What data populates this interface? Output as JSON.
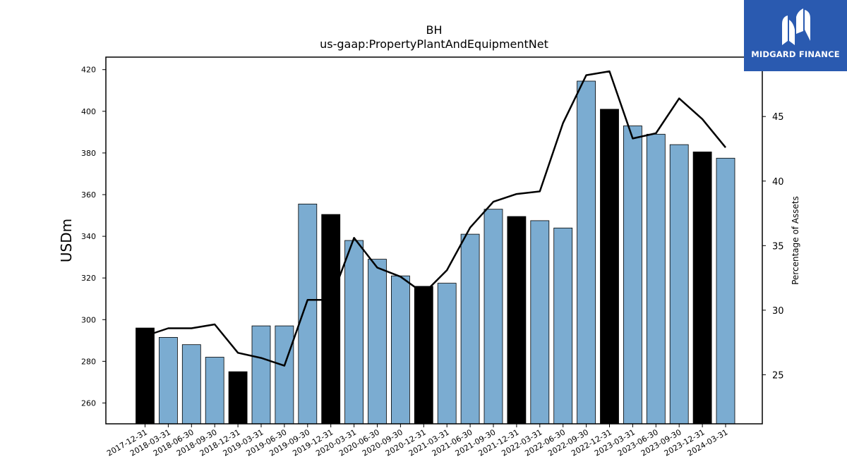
{
  "chart_data": {
    "type": "bar",
    "title": "BH",
    "subtitle": "us-gaap:PropertyPlantAndEquipmentNet",
    "ylabel": "USDm",
    "y2label": "Percentage of Assets",
    "ylim": [
      250,
      426
    ],
    "y2lim": [
      21.2,
      49.6
    ],
    "yticks": [
      260,
      280,
      300,
      320,
      340,
      360,
      380,
      400,
      420
    ],
    "y2ticks": [
      25,
      30,
      35,
      40,
      45
    ],
    "categories": [
      "2017-12-31",
      "2018-03-31",
      "2018-06-30",
      "2018-09-30",
      "2018-12-31",
      "2019-03-31",
      "2019-06-30",
      "2019-09-30",
      "2019-12-31",
      "2020-03-31",
      "2020-06-30",
      "2020-09-30",
      "2020-12-31",
      "2021-03-31",
      "2021-06-30",
      "2021-09-30",
      "2021-12-31",
      "2022-03-31",
      "2022-06-30",
      "2022-09-30",
      "2022-12-31",
      "2023-03-31",
      "2023-06-30",
      "2023-09-30",
      "2023-12-31",
      "2024-03-31"
    ],
    "series": [
      {
        "type": "bar",
        "values": [
          296,
          291.5,
          288,
          282,
          275,
          297,
          297,
          355.5,
          350.5,
          338,
          329,
          321,
          316,
          317.5,
          341,
          353,
          349.5,
          347.5,
          344,
          414.5,
          401,
          393,
          389,
          384,
          380.5,
          377.5
        ],
        "annual_flags": [
          true,
          false,
          false,
          false,
          true,
          false,
          false,
          false,
          true,
          false,
          false,
          false,
          true,
          false,
          false,
          false,
          true,
          false,
          false,
          false,
          true,
          false,
          false,
          false,
          true,
          false
        ]
      },
      {
        "type": "line",
        "axis": "right",
        "values": [
          28,
          28.6,
          28.6,
          28.9,
          26.7,
          26.3,
          25.7,
          30.8,
          30.8,
          35.6,
          33.3,
          32.6,
          31.3,
          33.1,
          36.4,
          38.4,
          39,
          39.2,
          44.5,
          48.2,
          48.5,
          43.3,
          43.7,
          46.4,
          44.8,
          42.6
        ]
      }
    ],
    "colors": {
      "annual": "#000000",
      "quarter": "#7bacd1",
      "line": "#000000"
    },
    "grid": false,
    "legend": "none"
  },
  "logo": {
    "text": "MIDGARD FINANCE",
    "icon": "midgard-logo-icon",
    "background": "#2a5ab0"
  }
}
